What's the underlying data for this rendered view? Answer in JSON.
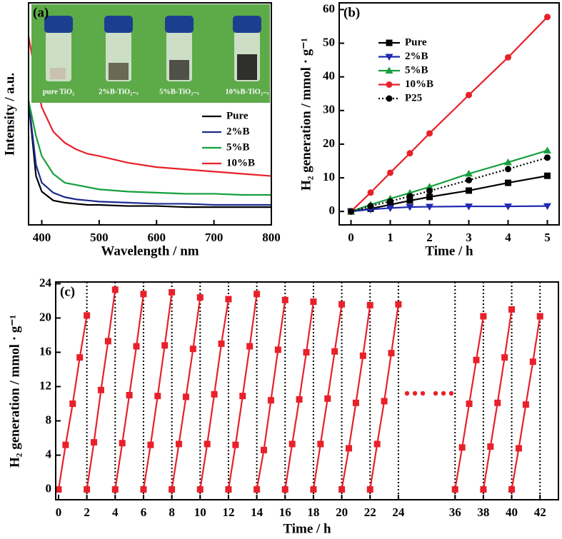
{
  "chart_data": [
    {
      "type": "line",
      "panel_label": "(a)",
      "xlabel": "Wavelength / nm",
      "ylabel": "Intensity / a.u.",
      "xlim": [
        377,
        800
      ],
      "xticks": [
        400,
        500,
        600,
        700,
        800
      ],
      "ylim": [
        0,
        1
      ],
      "legend": "center right",
      "x": [
        377,
        390,
        400,
        420,
        440,
        460,
        480,
        500,
        550,
        600,
        650,
        700,
        750,
        800
      ],
      "series": [
        {
          "name": "Pure",
          "color": "#000000",
          "values": [
            0.56,
            0.22,
            0.15,
            0.11,
            0.1,
            0.095,
            0.09,
            0.09,
            0.085,
            0.085,
            0.08,
            0.08,
            0.08,
            0.08
          ]
        },
        {
          "name": "2%B",
          "color": "#1d2a8f",
          "values": [
            0.56,
            0.27,
            0.19,
            0.145,
            0.125,
            0.115,
            0.11,
            0.105,
            0.1,
            0.095,
            0.095,
            0.09,
            0.09,
            0.09
          ]
        },
        {
          "name": "5%B",
          "color": "#14a03c",
          "values": [
            0.56,
            0.4,
            0.31,
            0.23,
            0.19,
            0.18,
            0.17,
            0.16,
            0.15,
            0.145,
            0.14,
            0.14,
            0.135,
            0.135
          ]
        },
        {
          "name": "10%B",
          "color": "#e8202a",
          "values": [
            0.85,
            0.66,
            0.53,
            0.42,
            0.37,
            0.34,
            0.32,
            0.31,
            0.28,
            0.26,
            0.25,
            0.24,
            0.23,
            0.22
          ]
        }
      ],
      "inset_labels": [
        "pure  TiO₂",
        "2%B-TiO₂₋ₓ",
        "5%B-TiO₂₋ₓ",
        "10%B-TiO₂₋ₓ"
      ]
    },
    {
      "type": "line",
      "panel_label": "(b)",
      "xlabel": "Time / h",
      "ylabel": "H₂ generation / mmol · g⁻¹",
      "xlim": [
        -0.3,
        5.3
      ],
      "xticks": [
        0,
        1,
        2,
        3,
        4,
        5
      ],
      "ylim": [
        -4,
        62
      ],
      "yticks": [
        0,
        10,
        20,
        30,
        40,
        50,
        60
      ],
      "legend": "upper left",
      "x": [
        0,
        0.5,
        1,
        1.5,
        2,
        3,
        4,
        5
      ],
      "series": [
        {
          "name": "Pure",
          "color": "#000000",
          "marker": "square",
          "values": [
            0,
            0.8,
            2.0,
            3.2,
            4.3,
            6.2,
            8.5,
            10.6
          ]
        },
        {
          "name": "2%B",
          "color": "#1f2ab0",
          "marker": "triangle-down",
          "values": [
            0,
            0.6,
            1.0,
            1.3,
            1.4,
            1.5,
            1.5,
            1.6
          ]
        },
        {
          "name": "5%B",
          "color": "#14a03c",
          "marker": "triangle-up",
          "values": [
            0,
            2.0,
            3.8,
            5.5,
            7.3,
            11.2,
            14.6,
            18.1
          ]
        },
        {
          "name": "10%B",
          "color": "#e8202a",
          "marker": "circle",
          "values": [
            0,
            5.6,
            11.5,
            17.3,
            23.2,
            34.6,
            45.8,
            57.8
          ]
        },
        {
          "name": "P25",
          "color": "#000000",
          "marker": "circle",
          "dashed": true,
          "values": [
            0,
            1.6,
            3.0,
            4.5,
            6.1,
            9.3,
            12.6,
            16.0
          ]
        }
      ]
    },
    {
      "type": "line",
      "panel_label": "(c)",
      "xlabel": "Time / h",
      "ylabel": "H₂ generation / mmol · g⁻¹",
      "xlim": [
        -0.2,
        43.3
      ],
      "xbreak": [
        24,
        36
      ],
      "xticks": [
        0,
        2,
        4,
        6,
        8,
        10,
        12,
        14,
        16,
        18,
        20,
        22,
        24,
        36,
        38,
        40,
        42
      ],
      "ylim": [
        -1.2,
        24.2
      ],
      "yticks": [
        0,
        4,
        8,
        12,
        16,
        20,
        24
      ],
      "grid": true,
      "color": "#e8202a",
      "marker": "square",
      "series": [
        {
          "x": [
            0,
            0.5,
            1,
            1.5,
            2
          ],
          "values": [
            0,
            5.2,
            10.0,
            15.4,
            20.3
          ]
        },
        {
          "x": [
            2,
            2.5,
            3,
            3.5,
            4
          ],
          "values": [
            0,
            5.5,
            11.6,
            17.3,
            23.3
          ]
        },
        {
          "x": [
            4,
            4.5,
            5,
            5.5,
            6
          ],
          "values": [
            0,
            5.4,
            11.0,
            16.7,
            22.8
          ]
        },
        {
          "x": [
            6,
            6.5,
            7,
            7.5,
            8
          ],
          "values": [
            0,
            5.2,
            10.9,
            16.8,
            23.0
          ]
        },
        {
          "x": [
            8,
            8.5,
            9,
            9.5,
            10
          ],
          "values": [
            0,
            5.3,
            10.8,
            16.4,
            22.4
          ]
        },
        {
          "x": [
            10,
            10.5,
            11,
            11.5,
            12
          ],
          "values": [
            0,
            5.3,
            11.1,
            17.0,
            22.2
          ]
        },
        {
          "x": [
            12,
            12.5,
            13,
            13.5,
            14
          ],
          "values": [
            0,
            5.2,
            10.9,
            16.7,
            22.8
          ]
        },
        {
          "x": [
            14,
            14.5,
            15,
            15.5,
            16
          ],
          "values": [
            0,
            4.6,
            10.4,
            16.3,
            22.1
          ]
        },
        {
          "x": [
            16,
            16.5,
            17,
            17.5,
            18
          ],
          "values": [
            0,
            5.3,
            10.5,
            16.0,
            21.9
          ]
        },
        {
          "x": [
            18,
            18.5,
            19,
            19.5,
            20
          ],
          "values": [
            0,
            5.3,
            10.6,
            16.1,
            21.6
          ]
        },
        {
          "x": [
            20,
            20.5,
            21,
            21.5,
            22
          ],
          "values": [
            0,
            4.8,
            10.1,
            15.6,
            21.5
          ]
        },
        {
          "x": [
            22,
            22.5,
            23,
            23.5,
            24
          ],
          "values": [
            0,
            5.3,
            10.3,
            15.9,
            21.6
          ]
        },
        {
          "x": [
            36,
            36.5,
            37,
            37.5,
            38
          ],
          "values": [
            0,
            4.9,
            10.0,
            15.1,
            20.2
          ]
        },
        {
          "x": [
            38,
            38.5,
            39,
            39.5,
            40
          ],
          "values": [
            0,
            5.0,
            10.1,
            15.4,
            21.0
          ]
        },
        {
          "x": [
            40,
            40.5,
            41,
            41.5,
            42
          ],
          "values": [
            0,
            4.8,
            9.9,
            14.9,
            20.2
          ]
        }
      ]
    }
  ]
}
